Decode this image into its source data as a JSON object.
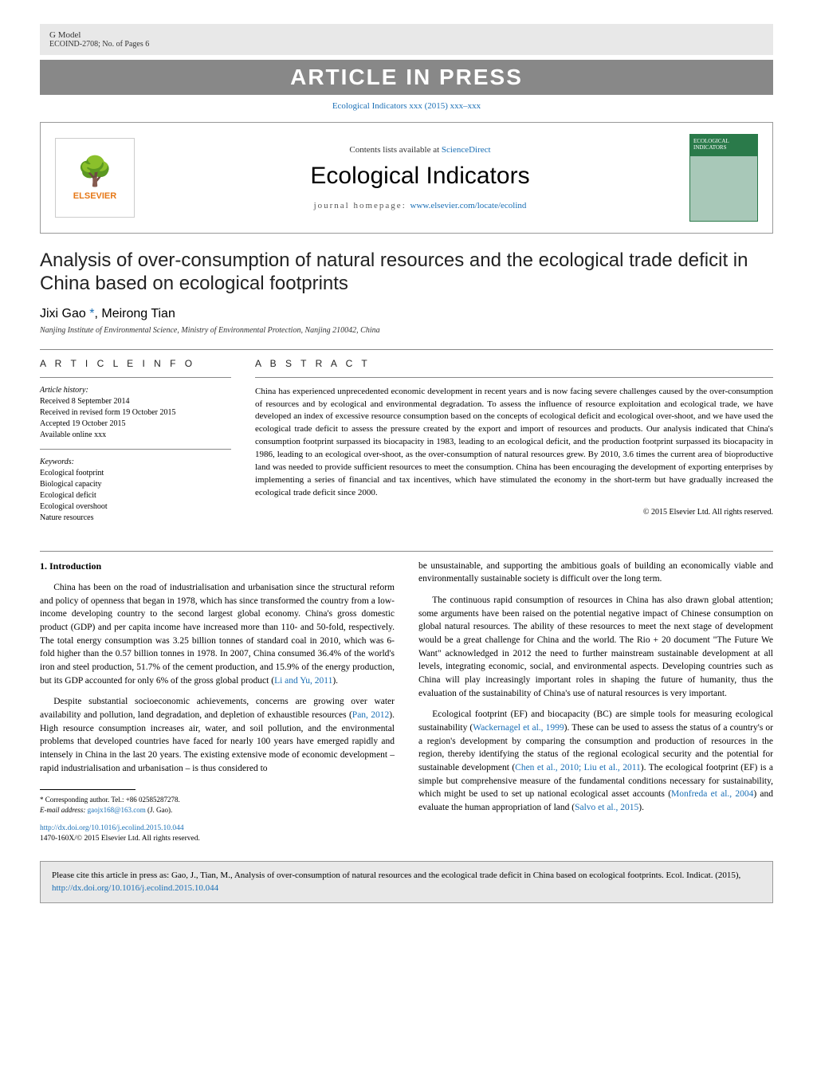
{
  "header": {
    "gmodel": "G Model",
    "ecoind_ref": "ECOIND-2708; No. of Pages 6",
    "aip": "ARTICLE IN PRESS",
    "journal_cite": "Ecological Indicators xxx (2015) xxx–xxx"
  },
  "journal_box": {
    "elsevier": "ELSEVIER",
    "contents_prefix": "Contents lists available at ",
    "contents_link": "ScienceDirect",
    "journal_name": "Ecological Indicators",
    "homepage_prefix": "journal homepage: ",
    "homepage_link": "www.elsevier.com/locate/ecolind",
    "cover_text": "ECOLOGICAL INDICATORS"
  },
  "title": "Analysis of over-consumption of natural resources and the ecological trade deficit in China based on ecological footprints",
  "authors": "Jixi Gao",
  "author2": ", Meirong Tian",
  "affiliation": "Nanjing Institute of Environmental Science, Ministry of Environmental Protection, Nanjing 210042, China",
  "info": {
    "heading": "A R T I C L E   I N F O",
    "history_label": "Article history:",
    "received": "Received 8 September 2014",
    "revised": "Received in revised form 19 October 2015",
    "accepted": "Accepted 19 October 2015",
    "online": "Available online xxx",
    "keywords_label": "Keywords:",
    "kw1": "Ecological footprint",
    "kw2": "Biological capacity",
    "kw3": "Ecological deficit",
    "kw4": "Ecological overshoot",
    "kw5": "Nature resources"
  },
  "abstract": {
    "heading": "A B S T R A C T",
    "text": "China has experienced unprecedented economic development in recent years and is now facing severe challenges caused by the over-consumption of resources and by ecological and environmental degradation. To assess the influence of resource exploitation and ecological trade, we have developed an index of excessive resource consumption based on the concepts of ecological deficit and ecological over-shoot, and we have used the ecological trade deficit to assess the pressure created by the export and import of resources and products. Our analysis indicated that China's consumption footprint surpassed its biocapacity in 1983, leading to an ecological deficit, and the production footprint surpassed its biocapacity in 1986, leading to an ecological over-shoot, as the over-consumption of natural resources grew. By 2010, 3.6 times the current area of bioproductive land was needed to provide sufficient resources to meet the consumption. China has been encouraging the development of exporting enterprises by implementing a series of financial and tax incentives, which have stimulated the economy in the short-term but have gradually increased the ecological trade deficit since 2000.",
    "copyright": "© 2015 Elsevier Ltd. All rights reserved."
  },
  "body": {
    "sec1": "1. Introduction",
    "p1a": "China has been on the road of industrialisation and urbanisation since the structural reform and policy of openness that began in 1978, which has since transformed the country from a low-income developing country to the second largest global economy. China's gross domestic product (GDP) and per capita income have increased more than 110- and 50-fold, respectively. The total energy consumption was 3.25 billion tonnes of standard coal in 2010, which was 6-fold higher than the 0.57 billion tonnes in 1978. In 2007, China consumed 36.4% of the world's iron and steel production, 51.7% of the cement production, and 15.9% of the energy production, but its GDP accounted for only 6% of the gross global product (",
    "p1_ref": "Li and Yu, 2011",
    "p1b": ").",
    "p2a": "Despite substantial socioeconomic achievements, concerns are growing over water availability and pollution, land degradation, and depletion of exhaustible resources (",
    "p2_ref": "Pan, 2012",
    "p2b": "). High resource consumption increases air, water, and soil pollution, and the environmental problems that developed countries have faced for nearly 100 years have emerged rapidly and intensely in China in the last 20 years. The existing extensive mode of economic development – rapid industrialisation and urbanisation – is thus considered to",
    "p3": "be unsustainable, and supporting the ambitious goals of building an economically viable and environmentally sustainable society is difficult over the long term.",
    "p4": "The continuous rapid consumption of resources in China has also drawn global attention; some arguments have been raised on the potential negative impact of Chinese consumption on global natural resources. The ability of these resources to meet the next stage of development would be a great challenge for China and the world. The Rio + 20 document \"The Future We Want\" acknowledged in 2012 the need to further mainstream sustainable development at all levels, integrating economic, social, and environmental aspects. Developing countries such as China will play increasingly important roles in shaping the future of humanity, thus the evaluation of the sustainability of China's use of natural resources is very important.",
    "p5a": "Ecological footprint (EF) and biocapacity (BC) are simple tools for measuring ecological sustainability (",
    "p5_ref1": "Wackernagel et al., 1999",
    "p5b": "). These can be used to assess the status of a country's or a region's development by comparing the consumption and production of resources in the region, thereby identifying the status of the regional ecological security and the potential for sustainable development (",
    "p5_ref2": "Chen et al., 2010; Liu et al., 2011",
    "p5c": "). The ecological footprint (EF) is a simple but comprehensive measure of the fundamental conditions necessary for sustainability, which might be used to set up national ecological asset accounts (",
    "p5_ref3": "Monfreda et al., 2004",
    "p5d": ") and evaluate the human appropriation of land (",
    "p5_ref4": "Salvo et al., 2015",
    "p5e": ")."
  },
  "footnote": {
    "corr": "Corresponding author. Tel.: +86 02585287278.",
    "email_label": "E-mail address: ",
    "email": "gaojx168@163.com",
    "email_suffix": " (J. Gao)."
  },
  "doi": {
    "url": "http://dx.doi.org/10.1016/j.ecolind.2015.10.044",
    "issn": "1470-160X/© 2015 Elsevier Ltd. All rights reserved."
  },
  "citebox": {
    "text_a": "Please cite this article in press as: Gao, J., Tian, M., Analysis of over-consumption of natural resources and the ecological trade deficit in China based on ecological footprints. Ecol. Indicat. (2015), ",
    "link": "http://dx.doi.org/10.1016/j.ecolind.2015.10.044"
  },
  "colors": {
    "link": "#1a6fb5",
    "header_bg": "#e8e8e8",
    "banner_bg": "#888888",
    "elsevier_orange": "#e67817"
  }
}
